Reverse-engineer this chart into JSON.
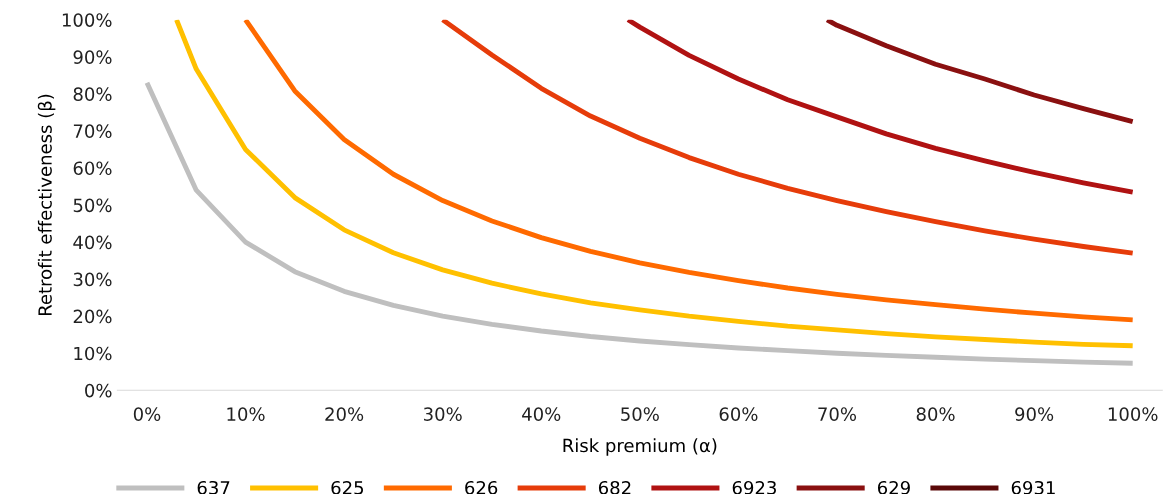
{
  "chart_data": {
    "type": "line",
    "xlabel": "Risk premium (α)",
    "ylabel": "Retrofit effectiveness (β)",
    "xlim": [
      -3,
      103
    ],
    "ylim": [
      0,
      100
    ],
    "xticks": [
      {
        "value": 0,
        "label": "0%"
      },
      {
        "value": 10,
        "label": "10%"
      },
      {
        "value": 20,
        "label": "20%"
      },
      {
        "value": 30,
        "label": "30%"
      },
      {
        "value": 40,
        "label": "40%"
      },
      {
        "value": 50,
        "label": "50%"
      },
      {
        "value": 60,
        "label": "60%"
      },
      {
        "value": 70,
        "label": "70%"
      },
      {
        "value": 80,
        "label": "80%"
      },
      {
        "value": 90,
        "label": "90%"
      },
      {
        "value": 100,
        "label": "100%"
      }
    ],
    "yticks": [
      {
        "value": 0,
        "label": "0%"
      },
      {
        "value": 10,
        "label": "10%"
      },
      {
        "value": 20,
        "label": "20%"
      },
      {
        "value": 30,
        "label": "30%"
      },
      {
        "value": 40,
        "label": "40%"
      },
      {
        "value": 50,
        "label": "50%"
      },
      {
        "value": 60,
        "label": "60%"
      },
      {
        "value": 70,
        "label": "70%"
      },
      {
        "value": 80,
        "label": "80%"
      },
      {
        "value": 90,
        "label": "90%"
      },
      {
        "value": 100,
        "label": "100%"
      }
    ],
    "grid": false,
    "legend": "bottom",
    "marker": "none",
    "line_style": "solid",
    "series": [
      {
        "name": "637",
        "color": "#bfbfbf",
        "x": [
          0,
          5,
          10,
          15,
          20,
          25,
          30,
          35,
          40,
          45,
          50,
          55,
          60,
          65,
          70,
          75,
          80,
          85,
          90,
          95,
          100
        ],
        "values": [
          83,
          54,
          40,
          32,
          26.7,
          22.9,
          20,
          17.8,
          16,
          14.5,
          13.3,
          12.3,
          11.4,
          10.7,
          10,
          9.4,
          8.9,
          8.4,
          8,
          7.6,
          7.3
        ]
      },
      {
        "name": "625",
        "color": "#ffc000",
        "x": [
          3,
          5,
          10,
          15,
          20,
          25,
          30,
          35,
          40,
          45,
          50,
          55,
          60,
          65,
          70,
          75,
          80,
          85,
          90,
          95,
          100
        ],
        "values": [
          100,
          86.7,
          65,
          52,
          43.3,
          37.1,
          32.5,
          28.9,
          26,
          23.6,
          21.7,
          20,
          18.6,
          17.3,
          16.3,
          15.3,
          14.4,
          13.7,
          13,
          12.4,
          12
        ]
      },
      {
        "name": "626",
        "color": "#ff6a00",
        "x": [
          10,
          15,
          20,
          25,
          30,
          35,
          40,
          45,
          50,
          55,
          60,
          65,
          70,
          75,
          80,
          85,
          90,
          95,
          100
        ],
        "values": [
          100,
          80.8,
          67.7,
          58.3,
          51.2,
          45.7,
          41.2,
          37.5,
          34.4,
          31.8,
          29.6,
          27.6,
          25.9,
          24.4,
          23.1,
          21.9,
          20.8,
          19.8,
          19
        ]
      },
      {
        "name": "682",
        "color": "#e63c0a",
        "x": [
          30,
          35,
          40,
          45,
          50,
          55,
          60,
          65,
          70,
          75,
          80,
          85,
          90,
          95,
          100
        ],
        "values": [
          100,
          90.5,
          81.5,
          74,
          68,
          62.8,
          58.3,
          54.5,
          51.2,
          48.2,
          45.5,
          43,
          40.8,
          38.8,
          37
        ]
      },
      {
        "name": "6923",
        "color": "#b01212",
        "x": [
          48.8,
          50,
          55,
          60,
          65,
          70,
          75,
          80,
          85,
          90,
          95,
          100
        ],
        "values": [
          100,
          98,
          90.4,
          84,
          78.4,
          73.8,
          69.2,
          65.3,
          61.9,
          58.8,
          56,
          53.5
        ]
      },
      {
        "name": "629",
        "color": "#8a1010",
        "x": [
          69,
          70,
          75,
          80,
          85,
          90,
          95,
          100
        ],
        "values": [
          100,
          98.5,
          93,
          88,
          84,
          79.7,
          76,
          72.5
        ]
      },
      {
        "name": "6931",
        "color": "#5a0808"
      }
    ]
  }
}
